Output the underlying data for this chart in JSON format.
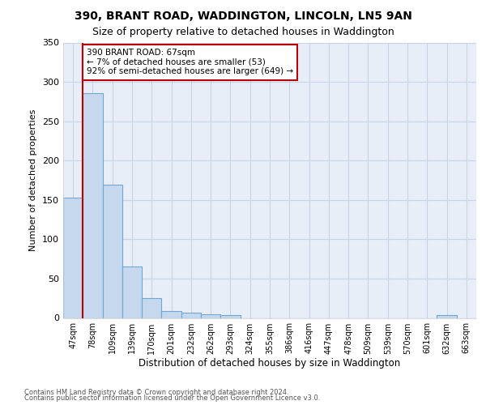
{
  "title": "390, BRANT ROAD, WADDINGTON, LINCOLN, LN5 9AN",
  "subtitle": "Size of property relative to detached houses in Waddington",
  "xlabel": "Distribution of detached houses by size in Waddington",
  "ylabel": "Number of detached properties",
  "categories": [
    "47sqm",
    "78sqm",
    "109sqm",
    "139sqm",
    "170sqm",
    "201sqm",
    "232sqm",
    "262sqm",
    "293sqm",
    "324sqm",
    "355sqm",
    "386sqm",
    "416sqm",
    "447sqm",
    "478sqm",
    "509sqm",
    "539sqm",
    "570sqm",
    "601sqm",
    "632sqm",
    "663sqm"
  ],
  "values": [
    153,
    286,
    169,
    65,
    25,
    9,
    7,
    5,
    4,
    0,
    0,
    0,
    0,
    0,
    0,
    0,
    0,
    0,
    0,
    4,
    0
  ],
  "bar_color": "#c5d8ee",
  "bar_edge_color": "#6fa8d0",
  "grid_color": "#c8d4e8",
  "background_color": "#e8eef8",
  "annotation_text": "390 BRANT ROAD: 67sqm\n← 7% of detached houses are smaller (53)\n92% of semi-detached houses are larger (649) →",
  "vline_x_index": 1,
  "vline_color": "#bb0000",
  "annotation_box_color": "#ffffff",
  "annotation_box_edge": "#bb0000",
  "ylim": [
    0,
    350
  ],
  "yticks": [
    0,
    50,
    100,
    150,
    200,
    250,
    300,
    350
  ],
  "title_fontsize": 10,
  "subtitle_fontsize": 9,
  "footer_line1": "Contains HM Land Registry data © Crown copyright and database right 2024.",
  "footer_line2": "Contains public sector information licensed under the Open Government Licence v3.0."
}
